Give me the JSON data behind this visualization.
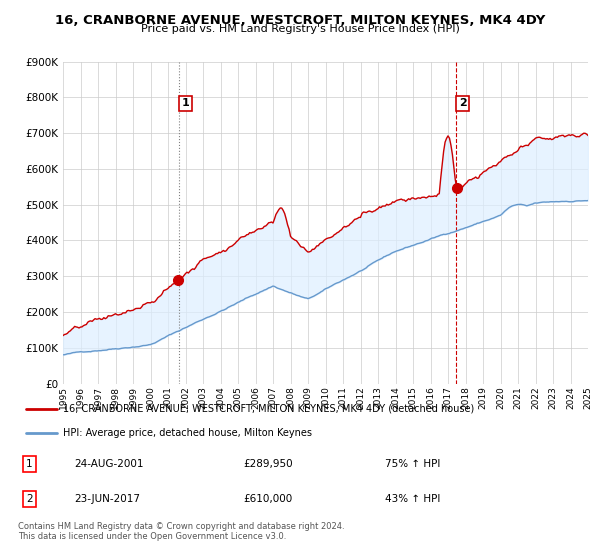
{
  "title": "16, CRANBORNE AVENUE, WESTCROFT, MILTON KEYNES, MK4 4DY",
  "subtitle": "Price paid vs. HM Land Registry's House Price Index (HPI)",
  "legend_line1": "16, CRANBORNE AVENUE, WESTCROFT, MILTON KEYNES, MK4 4DY (detached house)",
  "legend_line2": "HPI: Average price, detached house, Milton Keynes",
  "transaction1_date": "24-AUG-2001",
  "transaction1_price": "£289,950",
  "transaction1_hpi": "75% ↑ HPI",
  "transaction2_date": "23-JUN-2017",
  "transaction2_price": "£610,000",
  "transaction2_hpi": "43% ↑ HPI",
  "footer": "Contains HM Land Registry data © Crown copyright and database right 2024.\nThis data is licensed under the Open Government Licence v3.0.",
  "hpi_color": "#6699cc",
  "price_color": "#cc0000",
  "fill_color": "#ddeeff",
  "ylim": [
    0,
    900000
  ],
  "yticks": [
    0,
    100000,
    200000,
    300000,
    400000,
    500000,
    600000,
    700000,
    800000,
    900000
  ],
  "x_start_year": 1995,
  "x_end_year": 2025,
  "transaction1_year": 2001.62,
  "transaction2_year": 2017.47,
  "transaction1_value": 289950,
  "transaction2_value": 610000,
  "fig_width": 6.0,
  "fig_height": 5.6,
  "dpi": 100
}
